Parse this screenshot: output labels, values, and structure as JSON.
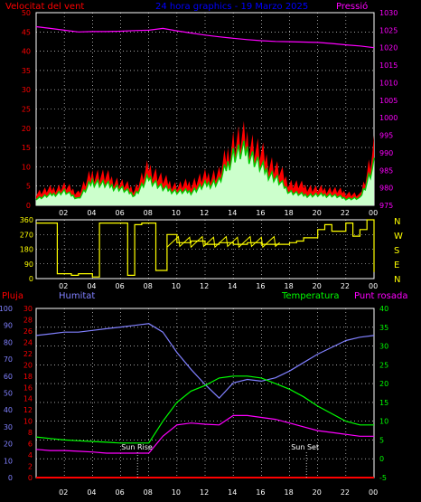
{
  "chart_data": [
    {
      "type": "line",
      "title": "24 hora graphics - 19 Marzo 2025",
      "left_label": "Velocitat del vent",
      "right_label": "Pressió",
      "colors": {
        "wind": "#ff0000",
        "gust": "#ff0000",
        "avg": "#00cc00",
        "dir": "#ccffcc",
        "pressure": "#ff00ff",
        "axis_left": "#ff0000",
        "axis_right": "#ff00ff",
        "grid": "#ffffff"
      },
      "left_ylim": [
        0,
        50
      ],
      "left_ticks": [
        "0",
        "5",
        "10",
        "15",
        "20",
        "25",
        "30",
        "35",
        "40",
        "45",
        "50"
      ],
      "right_ylim": [
        975,
        1030
      ],
      "right_ticks": [
        "975",
        "980",
        "985",
        "990",
        "995",
        "1000",
        "1005",
        "1010",
        "1015",
        "1020",
        "1025",
        "1030"
      ],
      "x_ticks": [
        "02",
        "04",
        "06",
        "08",
        "10",
        "12",
        "14",
        "16",
        "18",
        "20",
        "22",
        "00"
      ],
      "hours": [
        0,
        1,
        2,
        3,
        4,
        5,
        6,
        7,
        8,
        9,
        10,
        11,
        12,
        13,
        14,
        15,
        16,
        17,
        18,
        19,
        20,
        21,
        22,
        23,
        24
      ],
      "wind_gust": [
        4,
        5,
        6,
        4,
        10,
        9,
        7,
        5,
        12,
        8,
        6,
        7,
        9,
        10,
        20,
        21,
        16,
        12,
        7,
        6,
        5,
        5,
        4,
        3,
        18
      ],
      "wind_avg": [
        2,
        3,
        4,
        2,
        7,
        6,
        5,
        3,
        8,
        5,
        4,
        4,
        6,
        7,
        15,
        16,
        11,
        8,
        4,
        3,
        3,
        3,
        2,
        2,
        12
      ],
      "pressure": [
        1026,
        1025.5,
        1025,
        1024.5,
        1024.6,
        1024.6,
        1024.7,
        1024.9,
        1025,
        1025.5,
        1024.8,
        1024.2,
        1023.6,
        1023.1,
        1022.7,
        1022.3,
        1022,
        1021.8,
        1021.7,
        1021.6,
        1021.5,
        1021.2,
        1020.8,
        1020.5,
        1020
      ]
    },
    {
      "type": "line",
      "left_ticks": [
        "0",
        "90",
        "180",
        "270",
        "360"
      ],
      "ylim": [
        0,
        360
      ],
      "right_labels": [
        "N",
        "W",
        "S",
        "E",
        "N"
      ],
      "x_ticks": [
        "02",
        "04",
        "06",
        "08",
        "10",
        "12",
        "14",
        "16",
        "18",
        "20",
        "22",
        "00"
      ],
      "hours": [
        0,
        0.8,
        1.5,
        2.5,
        3,
        4,
        4.5,
        5.3,
        6.5,
        7,
        7.5,
        8.5,
        9.3,
        10,
        11,
        12,
        13,
        14,
        15,
        16,
        17,
        18,
        18.5,
        19,
        20,
        20.5,
        21,
        22,
        22.5,
        23,
        23.5,
        24
      ],
      "direction": [
        340,
        340,
        30,
        20,
        30,
        10,
        340,
        340,
        20,
        330,
        340,
        50,
        270,
        220,
        230,
        210,
        220,
        210,
        220,
        210,
        210,
        220,
        230,
        250,
        300,
        330,
        290,
        340,
        260,
        300,
        360,
        40
      ],
      "color": "#ffff00"
    },
    {
      "type": "line",
      "left_label_1": "Pluja",
      "left_label_2": "Humitat",
      "right_label_1": "Temperatura",
      "right_label_2": "Punt rosada",
      "rain_ticks": [
        "0",
        "2",
        "4",
        "6",
        "8",
        "10",
        "12",
        "14",
        "16",
        "18",
        "20",
        "22",
        "24",
        "26",
        "28",
        "30"
      ],
      "hum_ticks": [
        "0",
        "10",
        "20",
        "30",
        "40",
        "50",
        "60",
        "70",
        "80",
        "90",
        "100"
      ],
      "temp_ticks": [
        "-5",
        "0",
        "5",
        "10",
        "15",
        "20",
        "25",
        "30",
        "35",
        "40"
      ],
      "temp_ylim": [
        -5,
        40
      ],
      "hum_ylim": [
        0,
        100
      ],
      "x_ticks": [
        "02",
        "04",
        "06",
        "08",
        "10",
        "12",
        "14",
        "16",
        "18",
        "20",
        "22",
        "00"
      ],
      "hours": [
        0,
        1,
        2,
        3,
        4,
        5,
        6,
        7,
        8,
        9,
        10,
        11,
        12,
        13,
        14,
        15,
        16,
        17,
        18,
        19,
        20,
        21,
        22,
        23,
        24
      ],
      "humidity": [
        84,
        85,
        86,
        86,
        87,
        88,
        89,
        90,
        91,
        86,
        74,
        64,
        55,
        47,
        56,
        58,
        57,
        59,
        63,
        68,
        73,
        77,
        81,
        83,
        84
      ],
      "temperature": [
        5.8,
        5.4,
        5.0,
        4.8,
        4.6,
        4.4,
        4.2,
        4.2,
        4.2,
        10,
        15,
        18,
        19.5,
        21.5,
        22,
        22,
        21.5,
        20,
        18.5,
        16.5,
        14,
        12,
        10,
        9,
        9
      ],
      "dewpoint": [
        2.5,
        2.2,
        2.2,
        2.0,
        1.8,
        1.5,
        1.5,
        1.5,
        1.5,
        6,
        9,
        9.5,
        9.2,
        9.0,
        11.5,
        11.5,
        11,
        10.5,
        9.5,
        8.5,
        7.5,
        7,
        6.5,
        6,
        6
      ],
      "rain": [
        0,
        0,
        0,
        0,
        0,
        0,
        0,
        0,
        0,
        0,
        0,
        0,
        0,
        0,
        0,
        0,
        0,
        0,
        0,
        0,
        0,
        0,
        0,
        0,
        0
      ],
      "sunrise_label": "Sun Rise",
      "sunset_label": "Sun Set",
      "sunrise_hour": 7.2,
      "sunset_hour": 19.2,
      "colors": {
        "humidity": "#8080ff",
        "temperature": "#00ff00",
        "dewpoint": "#ff00ff",
        "rain": "#ff0000",
        "rain_axis": "#ff0000",
        "hum_axis": "#8080ff",
        "temp_axis": "#00ff00"
      }
    }
  ]
}
